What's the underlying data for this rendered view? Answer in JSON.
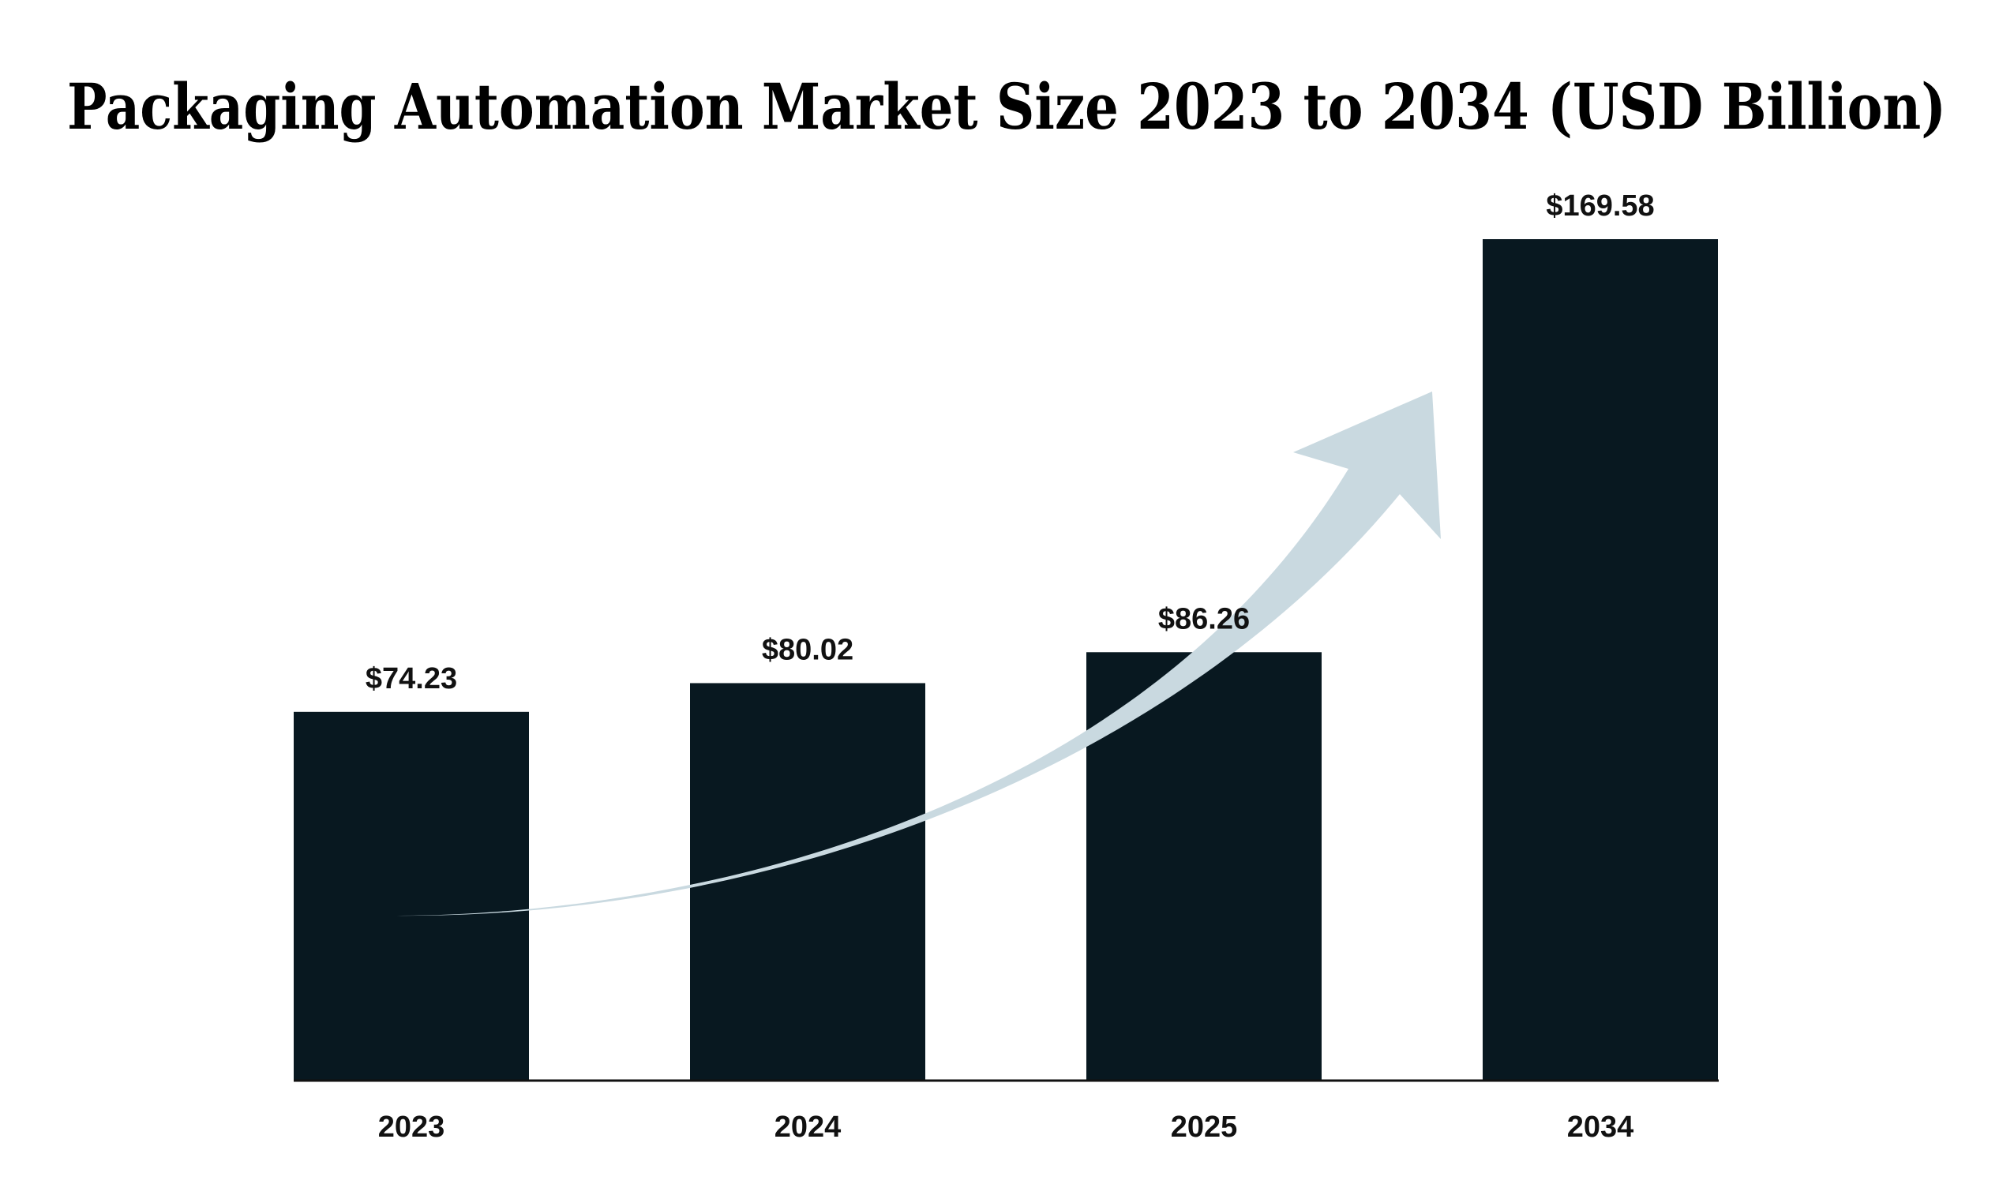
{
  "chart_data": {
    "type": "bar",
    "title": "Packaging Automation Market Size 2023 to 2034 (USD Billion)",
    "categories": [
      "2023",
      "2024",
      "2025",
      "2034"
    ],
    "values": [
      74.23,
      80.02,
      86.26,
      169.58
    ],
    "value_labels": [
      "$74.23",
      "$80.02",
      "$86.26",
      "$169.58"
    ],
    "color": "#081820"
  }
}
